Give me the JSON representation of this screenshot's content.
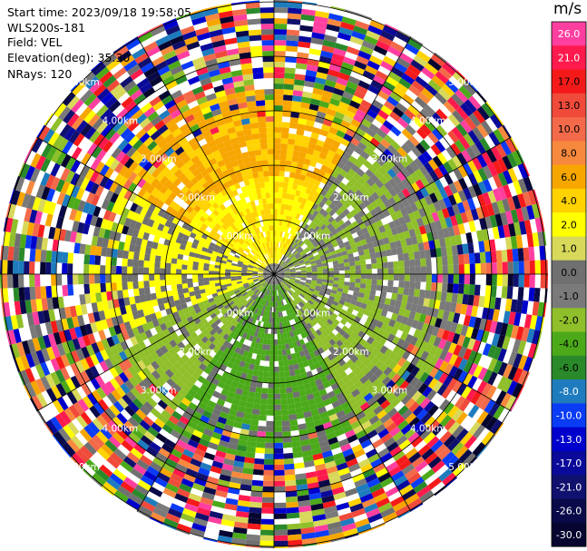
{
  "header": {
    "start_time": "Start time: 2023/09/18 19:58:05",
    "site": "WLS200s-181",
    "field": "Field: VEL",
    "elevation": "Elevation(deg): 35.30",
    "nrays": "NRays: 120"
  },
  "range_ring_labels": [
    "1.00km",
    "2.00km",
    "3.00km",
    "4.00km",
    "5.00km"
  ],
  "colorbar": {
    "unit": "m/s",
    "ticks": [
      "26.0",
      "21.0",
      "17.0",
      "13.0",
      "10.0",
      "8.0",
      "6.0",
      "4.0",
      "2.0",
      "1.0",
      "0.0",
      "-1.0",
      "-2.0",
      "-4.0",
      "-6.0",
      "-8.0",
      "-10.0",
      "-13.0",
      "-17.0",
      "-21.0",
      "-26.0",
      "-30.0"
    ],
    "colors": [
      "#ff3fa0",
      "#ff1a4d",
      "#f51a1a",
      "#f04a3a",
      "#f36a4a",
      "#f7893e",
      "#f7a600",
      "#ffd200",
      "#ffff00",
      "#d8d85a",
      "#707070",
      "#7a7a7a",
      "#8fbf2a",
      "#4caa1a",
      "#2a8a2a",
      "#1e7cbe",
      "#0a3cf5",
      "#0000cd",
      "#0a0a9a",
      "#10106e",
      "#0a0a4a",
      "#050530"
    ]
  }
}
